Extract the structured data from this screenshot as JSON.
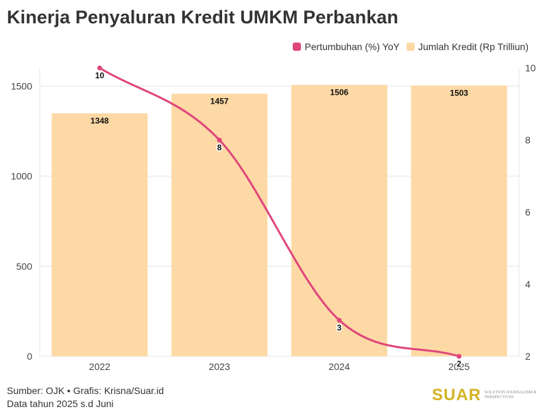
{
  "title": "Kinerja Penyaluran Kredit UMKM Perbankan",
  "legend": {
    "line_label": "Pertumbuhan (%) YoY",
    "bar_label": "Jumlah Kredit (Rp Trilliun)"
  },
  "colors": {
    "line": "#e0457b",
    "bar": "#fdd9a5",
    "grid": "#e6e6e6",
    "brand": "#d4b225"
  },
  "chart_data": {
    "type": "bar",
    "categories": [
      "2022",
      "2023",
      "2024",
      "2025"
    ],
    "series": [
      {
        "name": "Jumlah Kredit (Rp Trilliun)",
        "type": "bar",
        "axis": "left",
        "values": [
          1348,
          1457,
          1506,
          1503
        ]
      },
      {
        "name": "Pertumbuhan (%) YoY",
        "type": "line",
        "axis": "right",
        "values": [
          10,
          8,
          3,
          2
        ]
      }
    ],
    "left_axis": {
      "ylim": [
        0,
        1600
      ],
      "ticks": [
        0,
        500,
        1000,
        1500
      ]
    },
    "right_axis": {
      "ylim": [
        2,
        10
      ],
      "ticks": [
        2,
        4,
        6,
        8,
        10
      ]
    },
    "grid": true,
    "legend_position": "top-right"
  },
  "footer": {
    "source": "Sumber: OJK • Grafis: Krisna/Suar.id",
    "note": "Data tahun 2025 s.d Juni",
    "brand": "SUAR",
    "tagline": "Solution Journalism & Perspectives"
  }
}
